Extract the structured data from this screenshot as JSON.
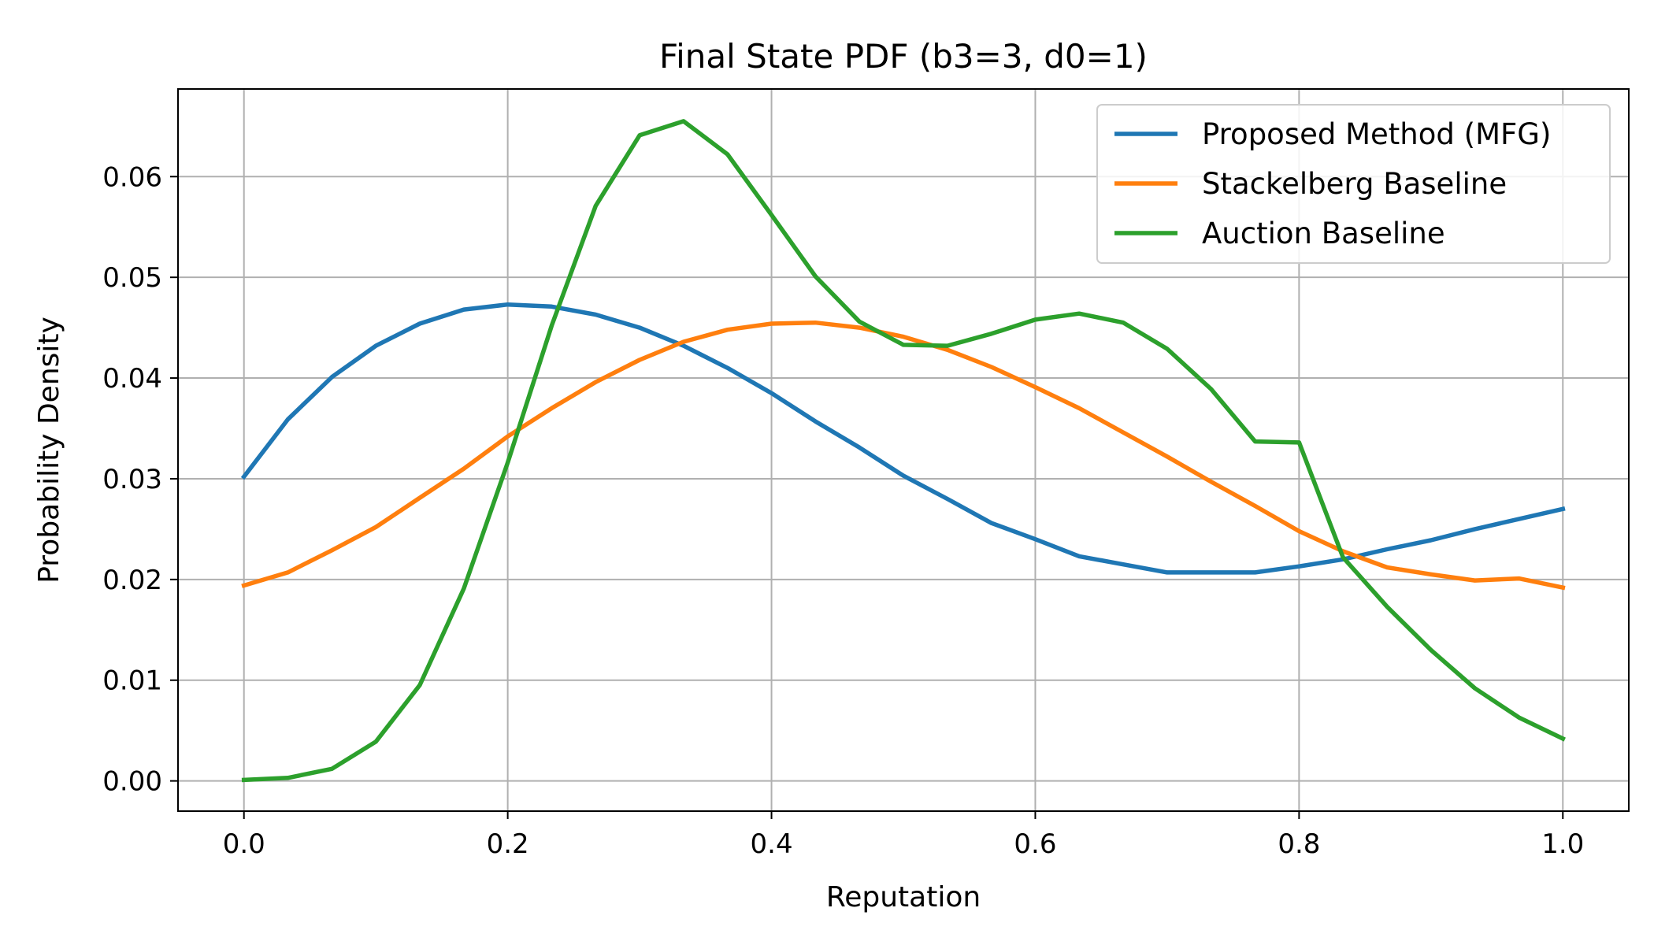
{
  "chart_data": {
    "type": "line",
    "title": "Final State PDF (b3=3, d0=1)",
    "xlabel": "Reputation",
    "ylabel": "Probability Density",
    "xlim": [
      -0.05,
      1.05
    ],
    "ylim": [
      -0.003,
      0.0687
    ],
    "xticks": [
      0.0,
      0.2,
      0.4,
      0.6,
      0.8,
      1.0
    ],
    "xtick_labels": [
      "0.0",
      "0.2",
      "0.4",
      "0.6",
      "0.8",
      "1.0"
    ],
    "yticks": [
      0.0,
      0.01,
      0.02,
      0.03,
      0.04,
      0.05,
      0.06
    ],
    "ytick_labels": [
      "0.00",
      "0.01",
      "0.02",
      "0.03",
      "0.04",
      "0.05",
      "0.06"
    ],
    "grid": true,
    "legend_position": "top-right",
    "x": [
      0.0,
      0.0333,
      0.0667,
      0.1,
      0.1333,
      0.1667,
      0.2,
      0.2333,
      0.2667,
      0.3,
      0.3333,
      0.3667,
      0.4,
      0.4333,
      0.4667,
      0.5,
      0.5333,
      0.5667,
      0.6,
      0.6333,
      0.6667,
      0.7,
      0.7333,
      0.7667,
      0.8,
      0.8333,
      0.8667,
      0.9,
      0.9333,
      0.9667,
      1.0
    ],
    "series": [
      {
        "name": "Proposed Method (MFG)",
        "color": "#1f77b4",
        "values": [
          0.0302,
          0.0359,
          0.0401,
          0.0432,
          0.0454,
          0.0468,
          0.0473,
          0.0471,
          0.0463,
          0.045,
          0.0432,
          0.041,
          0.0385,
          0.0357,
          0.0331,
          0.0303,
          0.028,
          0.0256,
          0.024,
          0.0223,
          0.0215,
          0.0207,
          0.0207,
          0.0207,
          0.0213,
          0.022,
          0.023,
          0.0239,
          0.025,
          0.026,
          0.027
        ]
      },
      {
        "name": "Stackelberg Baseline",
        "color": "#ff7f0e",
        "values": [
          0.0194,
          0.0207,
          0.0229,
          0.0252,
          0.0281,
          0.031,
          0.0342,
          0.037,
          0.0396,
          0.0418,
          0.0436,
          0.0448,
          0.0454,
          0.0455,
          0.045,
          0.0441,
          0.0428,
          0.0411,
          0.0391,
          0.037,
          0.0346,
          0.0322,
          0.0297,
          0.0273,
          0.0248,
          0.0228,
          0.0212,
          0.0205,
          0.0199,
          0.0201,
          0.0192
        ]
      },
      {
        "name": "Auction Baseline",
        "color": "#2ca02c",
        "values": [
          0.0001,
          0.0003,
          0.0012,
          0.0039,
          0.0095,
          0.0191,
          0.0316,
          0.0452,
          0.0571,
          0.0641,
          0.0655,
          0.0622,
          0.0562,
          0.0501,
          0.0456,
          0.0433,
          0.0432,
          0.0444,
          0.0458,
          0.0464,
          0.0455,
          0.0429,
          0.0389,
          0.0337,
          0.0336,
          0.0222,
          0.0173,
          0.013,
          0.0092,
          0.0063,
          0.0042
        ]
      }
    ]
  }
}
